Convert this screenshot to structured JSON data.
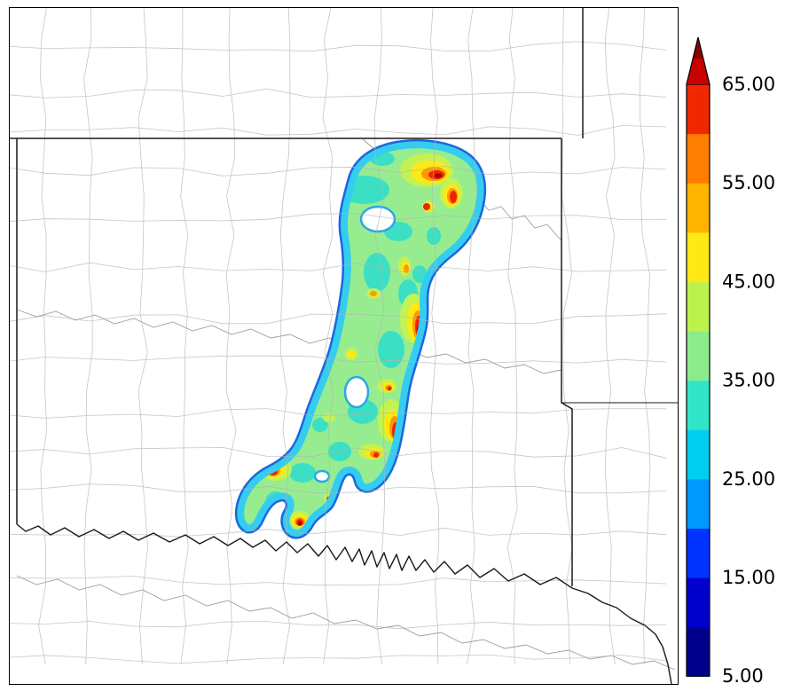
{
  "figure": {
    "type": "geographic-heatmap",
    "description": "Storm swath intensity map over Oklahoma region with county and state boundaries and an extended colorbar"
  },
  "map": {
    "background_color": "#ffffff",
    "county_line_color": "#b3b3b3",
    "state_line_color": "#1a1a1a",
    "river_line_color": "#9e9e9e",
    "swath": {
      "base_color": "#97EC90",
      "rim_inner_color": "#35CDEF",
      "rim_outer_color": "#1C66E0",
      "blobs": {
        "teal": {
          "color": "#3BE0C4",
          "ellipses": [
            [
              400,
              205,
              28,
              16
            ],
            [
              438,
              252,
              16,
              11
            ],
            [
              414,
              298,
              15,
              22
            ],
            [
              449,
              322,
              11,
              16
            ],
            [
              430,
              385,
              15,
              21
            ],
            [
              452,
              432,
              9,
              13
            ],
            [
              398,
              455,
              17,
              14
            ],
            [
              372,
              500,
              13,
              11
            ],
            [
              330,
              524,
              15,
              11
            ],
            [
              300,
              554,
              11,
              9
            ],
            [
              478,
              257,
              8,
              10
            ],
            [
              420,
              170,
              14,
              8
            ],
            [
              462,
              300,
              8,
              10
            ],
            [
              350,
              470,
              9,
              8
            ]
          ]
        },
        "yellow_green": {
          "color": "#C4F252",
          "ellipses": [
            [
              470,
              183,
              30,
              19
            ],
            [
              498,
              209,
              13,
              17
            ],
            [
              455,
              350,
              15,
              28
            ],
            [
              430,
              465,
              15,
              24
            ],
            [
              300,
              520,
              18,
              13
            ],
            [
              327,
              577,
              12,
              10
            ],
            [
              408,
              500,
              15,
              9
            ],
            [
              425,
              426,
              11,
              8
            ],
            [
              385,
              390,
              7,
              7
            ],
            [
              445,
              291,
              7,
              11
            ],
            [
              362,
              552,
              8,
              6
            ],
            [
              410,
              322,
              8,
              6
            ],
            [
              360,
              462,
              7,
              5
            ],
            [
              472,
              224,
              7,
              7
            ]
          ]
        },
        "yellow": {
          "color": "#FFE814",
          "ellipses": [
            [
              474,
              185,
              22,
              13
            ],
            [
              498,
              211,
              9,
              12
            ],
            [
              458,
              354,
              10,
              22
            ],
            [
              432,
              470,
              10,
              18
            ],
            [
              298,
              521,
              13,
              9
            ],
            [
              327,
              578,
              9,
              7
            ],
            [
              410,
              502,
              10,
              6
            ],
            [
              426,
              427,
              7,
              5
            ],
            [
              446,
              293,
              5,
              7
            ],
            [
              472,
              224,
              5,
              5
            ],
            [
              385,
              391,
              5,
              4
            ],
            [
              362,
              553,
              5,
              4
            ]
          ]
        },
        "orange": {
          "color": "#FF9800",
          "ellipses": [
            [
              478,
              187,
              14,
              8
            ],
            [
              499,
              212,
              6,
              9
            ],
            [
              460,
              357,
              6,
              16
            ],
            [
              434,
              473,
              6,
              13
            ],
            [
              297,
              522,
              8,
              6
            ],
            [
              327,
              579,
              6,
              5
            ],
            [
              412,
              503,
              6,
              4
            ],
            [
              427,
              428,
              4,
              3
            ],
            [
              447,
              294,
              3,
              5
            ],
            [
              410,
              322,
              4,
              3
            ]
          ]
        },
        "red": {
          "color": "#EE2400",
          "ellipses": [
            [
              481,
              188,
              9,
              5
            ],
            [
              500,
              213,
              4,
              7
            ],
            [
              470,
              224,
              4,
              4
            ],
            [
              461,
              359,
              4,
              12
            ],
            [
              435,
              477,
              4,
              10
            ],
            [
              297,
              523,
              5,
              4
            ],
            [
              327,
              580,
              4,
              4
            ],
            [
              413,
              504,
              3,
              3
            ],
            [
              428,
              429,
              2.5,
              2.5
            ],
            [
              360,
              553,
              3,
              2.5
            ]
          ]
        },
        "dark_red": {
          "color": "#9B0000",
          "ellipses": [
            [
              483,
              189,
              4,
              2.5
            ],
            [
              327,
              581,
              2,
              2
            ],
            [
              461,
              362,
              2,
              4
            ]
          ]
        }
      },
      "holes": [
        [
          415,
          238,
          19,
          14
        ],
        [
          391,
          433,
          13,
          17
        ],
        [
          352,
          528,
          8,
          6
        ]
      ]
    }
  },
  "colorbar": {
    "unit_min": 5,
    "unit_max": 65,
    "ticks": [
      "65.00",
      "55.00",
      "45.00",
      "35.00",
      "25.00",
      "15.00",
      "5.00"
    ],
    "segments": [
      {
        "range": "5-10",
        "color": "#00008B"
      },
      {
        "range": "10-15",
        "color": "#0000CD"
      },
      {
        "range": "15-20",
        "color": "#0033FF"
      },
      {
        "range": "20-25",
        "color": "#0099FF"
      },
      {
        "range": "25-30",
        "color": "#00CFEF"
      },
      {
        "range": "30-35",
        "color": "#31E5C8"
      },
      {
        "range": "35-40",
        "color": "#8CEB8C"
      },
      {
        "range": "40-45",
        "color": "#BDF24D"
      },
      {
        "range": "45-50",
        "color": "#FFE814"
      },
      {
        "range": "50-55",
        "color": "#FFB400"
      },
      {
        "range": "55-60",
        "color": "#FF7D00"
      },
      {
        "range": "60-65",
        "color": "#F02800"
      }
    ],
    "arrow_lower_color": "#C80000",
    "arrow_upper_color": "#8B0000",
    "outline_color": "#000000"
  }
}
